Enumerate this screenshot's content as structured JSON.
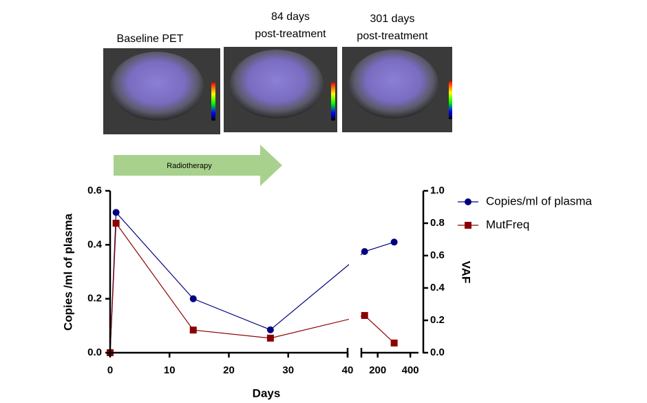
{
  "images": [
    {
      "label": [
        "Baseline PET"
      ]
    },
    {
      "label": [
        "84 days",
        "post-treatment"
      ]
    },
    {
      "label": [
        "301 days",
        "post-treatment"
      ]
    }
  ],
  "annotation": "Radiotherapy",
  "chart_data": {
    "type": "line",
    "x_label": "Days",
    "y_label": "Copies /ml of plasma",
    "y2_label": "VAF",
    "x": [
      0,
      1,
      14,
      27,
      120,
      301
    ],
    "series": [
      {
        "name": "Copies/ml of plasma",
        "color": "#000080",
        "marker": "circle",
        "values": [
          0,
          0.52,
          0.2,
          0.085,
          0.375,
          0.41
        ]
      },
      {
        "name": "MutFreq",
        "color": "#8b0000",
        "marker": "square",
        "axis": "y2",
        "values": [
          0,
          0.8,
          0.14,
          0.09,
          0.23,
          0.06
        ]
      }
    ],
    "xsegments": [
      {
        "xlim": [
          0,
          40
        ],
        "xticks": [
          0,
          10,
          20,
          30,
          40
        ]
      },
      {
        "xlim": [
          100,
          450
        ],
        "xticks": [
          200,
          400
        ]
      }
    ],
    "ylim": [
      0,
      0.6
    ],
    "yticks": [
      {
        "value": 0,
        "label": "0.0"
      },
      0.2,
      0.4,
      0.6
    ],
    "y2lim": [
      0,
      1
    ],
    "y2ticks": [
      {
        "value": 0,
        "label": "0.0"
      },
      0.2,
      0.4,
      0.6,
      0.8,
      {
        "value": 1,
        "label": "1.0"
      }
    ],
    "legend": "right"
  }
}
